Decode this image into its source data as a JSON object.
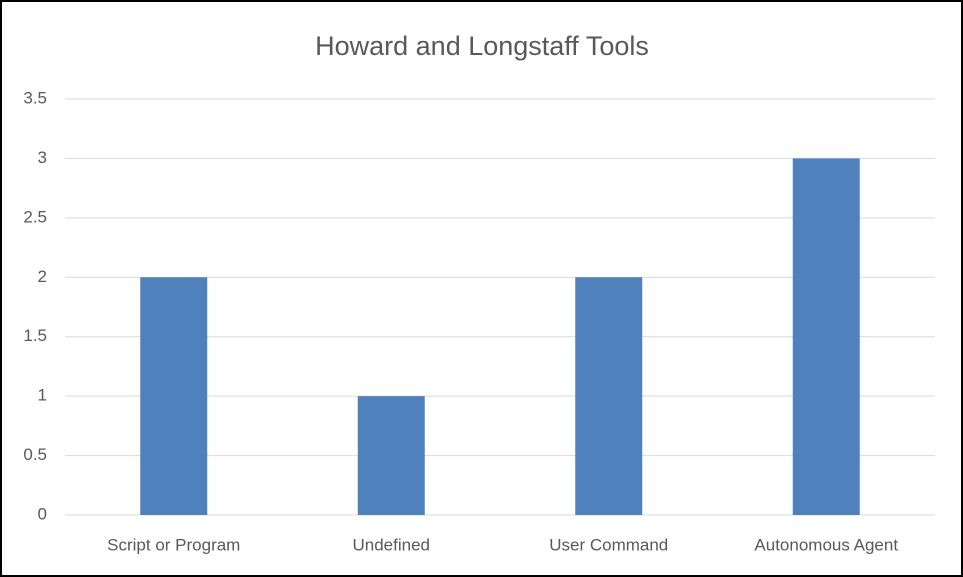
{
  "chart_data": {
    "type": "bar",
    "title": "Howard and Longstaff Tools",
    "categories": [
      "Script or Program",
      "Undefined",
      "User Command",
      "Autonomous Agent"
    ],
    "values": [
      2,
      1,
      2,
      3
    ],
    "color": "#4f81bd",
    "ylim": [
      0,
      3.5
    ],
    "yticks": [
      0,
      0.5,
      1,
      1.5,
      2,
      2.5,
      3,
      3.5
    ],
    "grid": true
  }
}
